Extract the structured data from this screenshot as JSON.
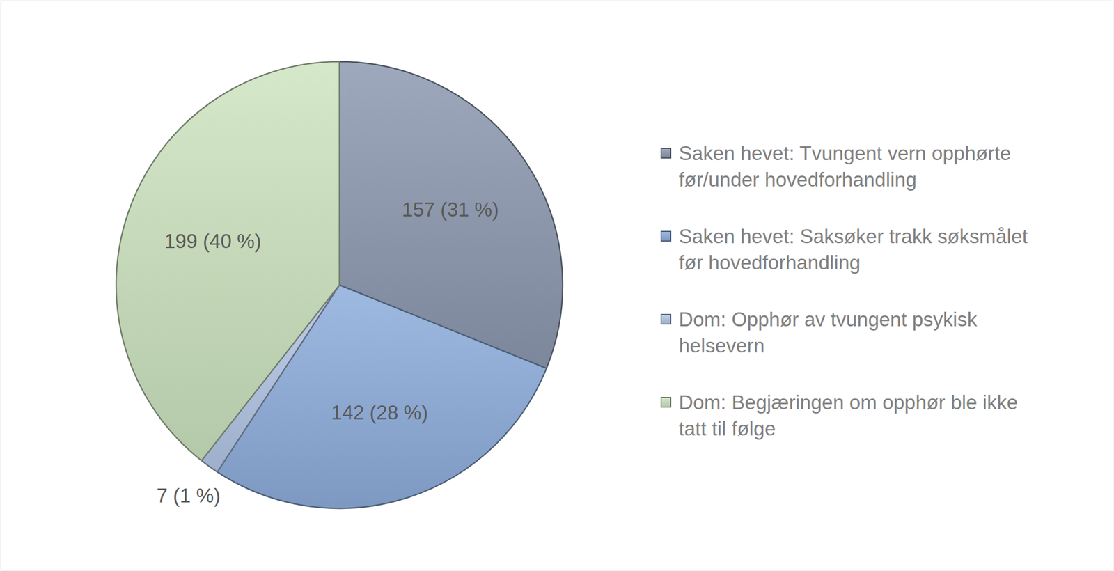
{
  "chart_data": {
    "type": "pie",
    "categories": [
      "Saken hevet: Tvungent vern opphørte før/under hovedforhandling",
      "Saken hevet: Saksøker trakk søksmålet før hovedforhandling",
      "Dom: Opphør av tvungent psykisk helsevern",
      "Dom: Begjæringen om opphør ble ikke tatt til følge"
    ],
    "values": [
      157,
      142,
      7,
      199
    ],
    "value_labels": [
      "157 (31 %)",
      "142 (28 %)",
      "7 (1 %)",
      "199 (40 %)"
    ],
    "colors": [
      "#8d99b0",
      "#8eaedc",
      "#b4c7e7",
      "#cde4c0"
    ],
    "data_labels": true,
    "legend": "right"
  }
}
